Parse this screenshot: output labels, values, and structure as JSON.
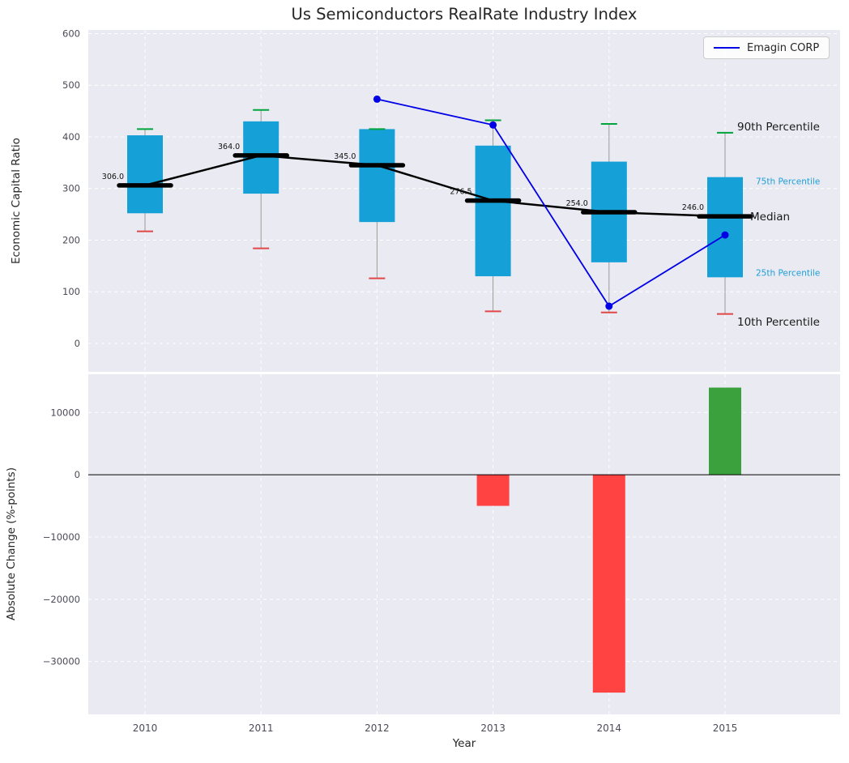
{
  "chart_data": [
    {
      "type": "box-percentile",
      "title": "Us Semiconductors RealRate Industry Index",
      "ylabel": "Economic Capital Ratio",
      "ylim": [
        -55,
        607
      ],
      "yticks": [
        0,
        100,
        200,
        300,
        400,
        500,
        600
      ],
      "categories": [
        "2010",
        "2011",
        "2012",
        "2013",
        "2014",
        "2015"
      ],
      "grid": "white-dashed",
      "series": {
        "p10": [
          217,
          184,
          126,
          62,
          60,
          57
        ],
        "p25": [
          252,
          290,
          235,
          130,
          157,
          128
        ],
        "median": [
          306.0,
          364.0,
          345.0,
          276.5,
          254.0,
          246.0
        ],
        "p75": [
          403,
          430,
          415,
          383,
          352,
          322
        ],
        "p90": [
          415,
          452,
          415,
          432,
          425,
          408
        ]
      },
      "median_labels": [
        "306.0",
        "364.0",
        "345.0",
        "276.5",
        "254.0",
        "246.0"
      ],
      "overlay_line": {
        "name": "Emagin CORP",
        "x": [
          "2012",
          "2013",
          "2014",
          "2015"
        ],
        "y": [
          473,
          423,
          72,
          210
        ]
      },
      "legend": {
        "label": "Emagin CORP",
        "position": "upper right"
      },
      "annotations": [
        {
          "text": "90th Percentile",
          "value": 420,
          "anchor": "cap",
          "style": "black-large"
        },
        {
          "text": "75th Percentile",
          "value": 316,
          "anchor": "box",
          "style": "blue-small"
        },
        {
          "text": "Median",
          "value": 246,
          "anchor": "median",
          "style": "black-large"
        },
        {
          "text": "25th Percentile",
          "value": 139,
          "anchor": "box",
          "style": "blue-small"
        },
        {
          "text": "10th Percentile",
          "value": 42,
          "anchor": "cap",
          "style": "black-large"
        }
      ]
    },
    {
      "type": "bar",
      "ylabel": "Absolute Change (%-points)",
      "xlabel": "Year",
      "ylim": [
        -38500,
        16150
      ],
      "yticks": [
        10000,
        0,
        -10000,
        -20000,
        -30000
      ],
      "categories": [
        "2010",
        "2011",
        "2012",
        "2013",
        "2014",
        "2015"
      ],
      "values": [
        null,
        null,
        null,
        -5000,
        -35000,
        14000
      ],
      "zero_line": true
    }
  ],
  "colors": {
    "plot_bg": "#eaeaf2",
    "grid": "#ffffff",
    "box": "#16a0d8",
    "median": "#000000",
    "median_connect": "#000000",
    "cap_high": "#00a33c",
    "cap_low": "#e04848",
    "whisker": "#999999",
    "emagin": "#0000e6",
    "bar_negative": "#ff4242",
    "bar_positive": "#3aa13c",
    "tick_text": "#4b4b59",
    "label_text": "#262626",
    "value_label_text": "#111111",
    "percentile_blue": "#1d9fd6",
    "legend_border": "#cccccc"
  }
}
